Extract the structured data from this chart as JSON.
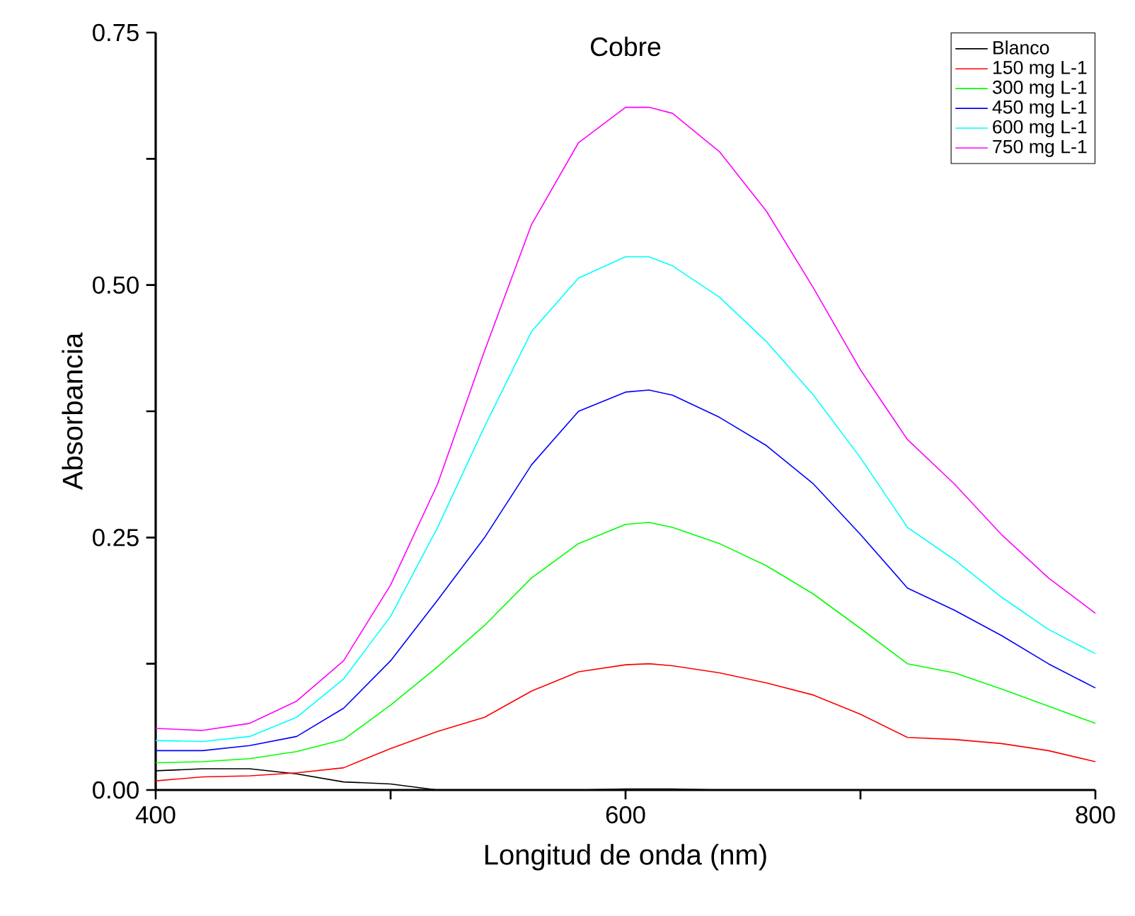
{
  "chart_data": {
    "type": "line",
    "title": "Cobre",
    "xlabel": "Longitud de onda (nm)",
    "ylabel": "Absorbancia",
    "x": [
      400,
      420,
      440,
      460,
      480,
      500,
      520,
      540,
      560,
      580,
      600,
      610,
      620,
      640,
      660,
      680,
      700,
      720,
      740,
      760,
      780,
      800
    ],
    "series": [
      {
        "name": "Blanco",
        "color": "#000000",
        "values": [
          0.019,
          0.021,
          0.021,
          0.016,
          0.008,
          0.006,
          0,
          0,
          0,
          0,
          0.001,
          0.001,
          0.001,
          0,
          0,
          0,
          0,
          0,
          0,
          0,
          0,
          0
        ]
      },
      {
        "name": "150 mg L-1",
        "color": "#ff0000",
        "values": [
          0.009,
          0.013,
          0.014,
          0.017,
          0.022,
          0.041,
          0.058,
          0.072,
          0.098,
          0.117,
          0.124,
          0.125,
          0.123,
          0.116,
          0.106,
          0.094,
          0.075,
          0.052,
          0.05,
          0.046,
          0.039,
          0.028
        ]
      },
      {
        "name": "300 mg L-1",
        "color": "#00ff00",
        "values": [
          0.027,
          0.028,
          0.031,
          0.038,
          0.05,
          0.084,
          0.122,
          0.163,
          0.21,
          0.244,
          0.263,
          0.265,
          0.26,
          0.244,
          0.222,
          0.194,
          0.16,
          0.125,
          0.116,
          0.1,
          0.083,
          0.066
        ]
      },
      {
        "name": "450 mg L-1",
        "color": "#0000ff",
        "values": [
          0.039,
          0.039,
          0.044,
          0.053,
          0.081,
          0.128,
          0.188,
          0.25,
          0.322,
          0.375,
          0.394,
          0.396,
          0.391,
          0.369,
          0.341,
          0.303,
          0.253,
          0.2,
          0.178,
          0.153,
          0.125,
          0.101
        ]
      },
      {
        "name": "600 mg L-1",
        "color": "#00ffff",
        "values": [
          0.049,
          0.048,
          0.053,
          0.072,
          0.11,
          0.172,
          0.26,
          0.36,
          0.454,
          0.507,
          0.528,
          0.528,
          0.519,
          0.488,
          0.444,
          0.391,
          0.329,
          0.26,
          0.228,
          0.191,
          0.159,
          0.135
        ]
      },
      {
        "name": "750 mg L-1",
        "color": "#ff00ff",
        "values": [
          0.061,
          0.059,
          0.066,
          0.088,
          0.128,
          0.203,
          0.303,
          0.435,
          0.56,
          0.641,
          0.676,
          0.676,
          0.67,
          0.632,
          0.573,
          0.497,
          0.416,
          0.347,
          0.303,
          0.253,
          0.21,
          0.175
        ]
      }
    ],
    "xlim": [
      400,
      800
    ],
    "ylim": [
      0,
      0.75
    ],
    "xticks": [
      400,
      {
        "value": 500,
        "label": null
      },
      600,
      {
        "value": 700,
        "label": null
      },
      800
    ],
    "yticks": [
      {
        "value": 0,
        "label": "0.00"
      },
      {
        "value": 0.125,
        "label": null
      },
      {
        "value": 0.25,
        "label": "0.25"
      },
      {
        "value": 0.375,
        "label": null
      },
      {
        "value": 0.5,
        "label": "0.50"
      },
      {
        "value": 0.625,
        "label": null
      },
      {
        "value": 0.75,
        "label": "0.75"
      }
    ],
    "legend": "top right",
    "grid": false,
    "marker": "none",
    "line_style": "solid"
  }
}
